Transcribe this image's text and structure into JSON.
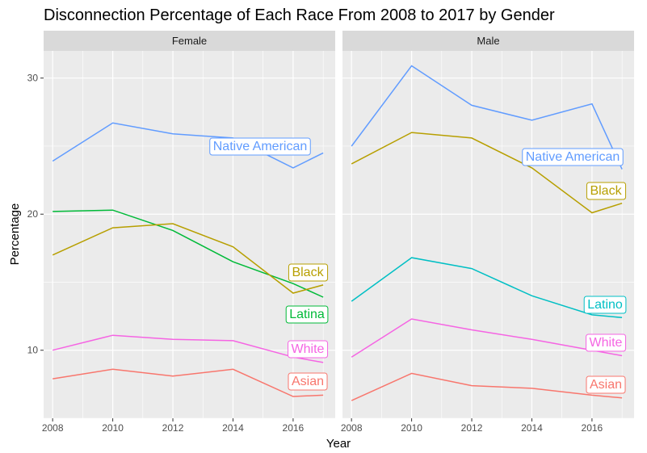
{
  "chart_data": {
    "type": "line",
    "title": "Disconnection Percentage of Each Race From 2008 to 2017 by Gender",
    "xlabel": "Year",
    "ylabel": "Percentage",
    "x_ticks": [
      2008,
      2010,
      2012,
      2014,
      2016
    ],
    "y_ticks": [
      10,
      20,
      30
    ],
    "xlim": [
      2007.7,
      2017.4
    ],
    "ylim": [
      5.0,
      32.0
    ],
    "grid": true,
    "legend": "direct labels on series",
    "panels": [
      {
        "facet": "Female",
        "series": [
          {
            "name": "Native American",
            "color": "#619CFF",
            "x": [
              2008,
              2010,
              2012,
              2014,
              2016,
              2017
            ],
            "y": [
              23.9,
              26.7,
              25.9,
              25.6,
              23.4,
              24.5
            ]
          },
          {
            "name": "Latina",
            "color": "#00BA38",
            "x": [
              2008,
              2010,
              2012,
              2014,
              2016,
              2017
            ],
            "y": [
              20.2,
              20.3,
              18.8,
              16.5,
              14.9,
              13.9
            ]
          },
          {
            "name": "Black",
            "color": "#B79F00",
            "x": [
              2008,
              2010,
              2012,
              2014,
              2016,
              2017
            ],
            "y": [
              17.0,
              19.0,
              19.3,
              17.6,
              14.2,
              14.8
            ]
          },
          {
            "name": "White",
            "color": "#F564E3",
            "x": [
              2008,
              2010,
              2012,
              2014,
              2016,
              2017
            ],
            "y": [
              10.0,
              11.1,
              10.8,
              10.7,
              9.5,
              9.1
            ]
          },
          {
            "name": "Asian",
            "color": "#F8766D",
            "x": [
              2008,
              2010,
              2012,
              2014,
              2016,
              2017
            ],
            "y": [
              7.9,
              8.6,
              8.1,
              8.6,
              6.6,
              6.7
            ]
          }
        ]
      },
      {
        "facet": "Male",
        "series": [
          {
            "name": "Native American",
            "color": "#619CFF",
            "x": [
              2008,
              2010,
              2012,
              2014,
              2016,
              2017
            ],
            "y": [
              25.0,
              30.9,
              28.0,
              26.9,
              28.1,
              23.3
            ]
          },
          {
            "name": "Black",
            "color": "#B79F00",
            "x": [
              2008,
              2010,
              2012,
              2014,
              2016,
              2017
            ],
            "y": [
              23.7,
              26.0,
              25.6,
              23.4,
              20.1,
              20.8
            ]
          },
          {
            "name": "Latino",
            "color": "#00BFC4",
            "x": [
              2008,
              2010,
              2012,
              2014,
              2016,
              2017
            ],
            "y": [
              13.6,
              16.8,
              16.0,
              14.0,
              12.6,
              12.4
            ]
          },
          {
            "name": "White",
            "color": "#F564E3",
            "x": [
              2008,
              2010,
              2012,
              2014,
              2016,
              2017
            ],
            "y": [
              9.5,
              12.3,
              11.5,
              10.8,
              10.0,
              9.6
            ]
          },
          {
            "name": "Asian",
            "color": "#F8766D",
            "x": [
              2008,
              2010,
              2012,
              2014,
              2016,
              2017
            ],
            "y": [
              6.3,
              8.3,
              7.4,
              7.2,
              6.7,
              6.5
            ]
          }
        ]
      }
    ]
  }
}
